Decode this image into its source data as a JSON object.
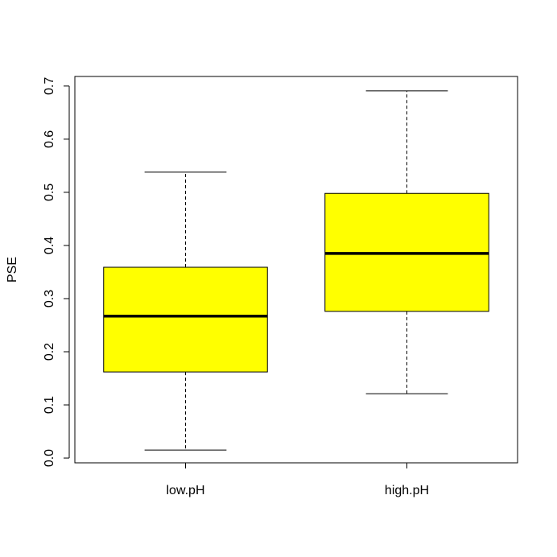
{
  "chart_data": {
    "type": "box",
    "y_label": "PSE",
    "categories": [
      "low.pH",
      "high.pH"
    ],
    "min": [
      0.015,
      0.121
    ],
    "q1": [
      0.162,
      0.276
    ],
    "median": [
      0.267,
      0.385
    ],
    "q3": [
      0.359,
      0.498
    ],
    "max": [
      0.538,
      0.691
    ],
    "color": "#ffff00",
    "ylim": [
      -0.009,
      0.718
    ],
    "yticks": [
      {
        "value": 0,
        "label": "0.0"
      },
      0.1,
      0.2,
      0.3,
      0.4,
      0.5,
      0.6,
      0.7
    ]
  }
}
